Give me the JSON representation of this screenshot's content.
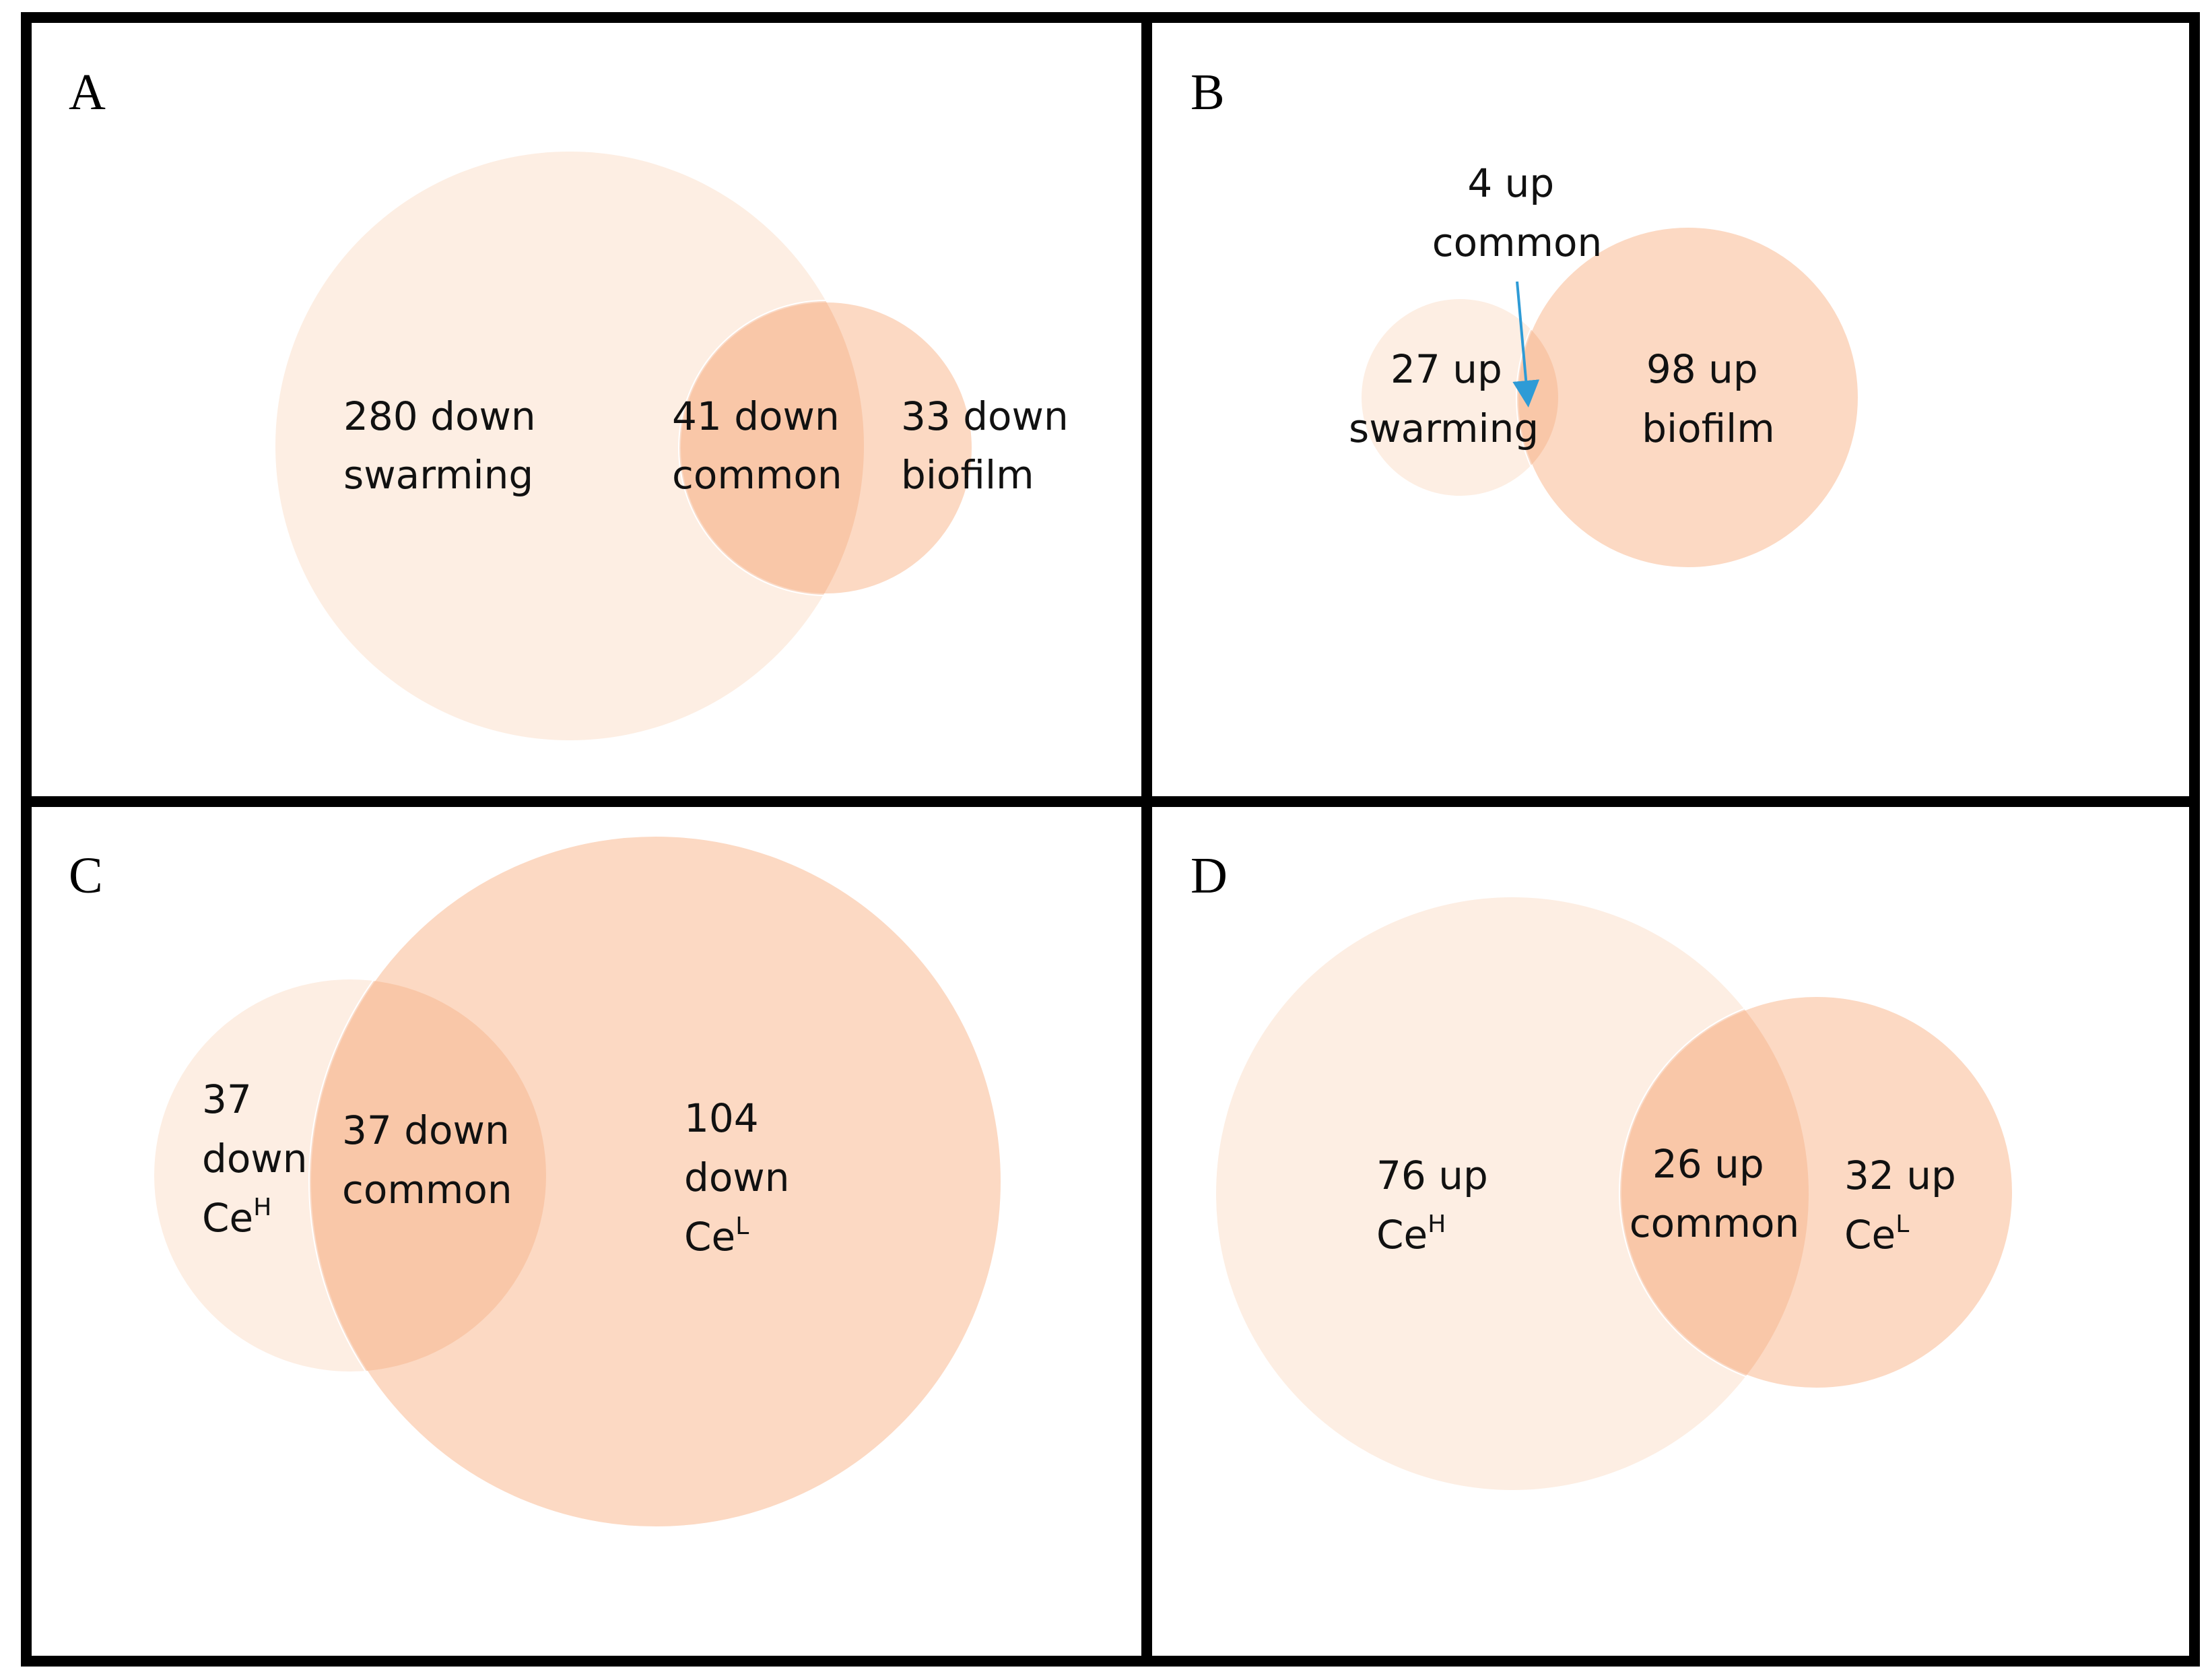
{
  "panels": {
    "a": {
      "letter": "A",
      "left": {
        "count": "280 down",
        "name": "swarming"
      },
      "common": {
        "count": "41 down",
        "name": "common"
      },
      "right": {
        "count": "33 down",
        "name": "biofilm"
      }
    },
    "b": {
      "letter": "B",
      "common": {
        "count": "4 up",
        "name": "common"
      },
      "left": {
        "count": "27 up",
        "name": "swarming"
      },
      "right": {
        "count": "98 up",
        "name": "biofilm"
      }
    },
    "c": {
      "letter": "C",
      "left": {
        "count": "37",
        "direction": "down",
        "base": "Ce",
        "sup": "H"
      },
      "common": {
        "count": "37 down",
        "name": "common"
      },
      "right": {
        "count": "104",
        "direction": "down",
        "base": "Ce",
        "sup": "L"
      }
    },
    "d": {
      "letter": "D",
      "left": {
        "count": "76 up",
        "base": "Ce",
        "sup": "H"
      },
      "common": {
        "count": "26 up",
        "name": "common"
      },
      "right": {
        "count": "32 up",
        "base": "Ce",
        "sup": "L"
      }
    }
  },
  "colors": {
    "border": "#000000",
    "circle_light": "#fdeee3",
    "circle_mid": "#fbd2b8",
    "overlap": "#f6b996",
    "arrow": "#2e9bd6"
  }
}
